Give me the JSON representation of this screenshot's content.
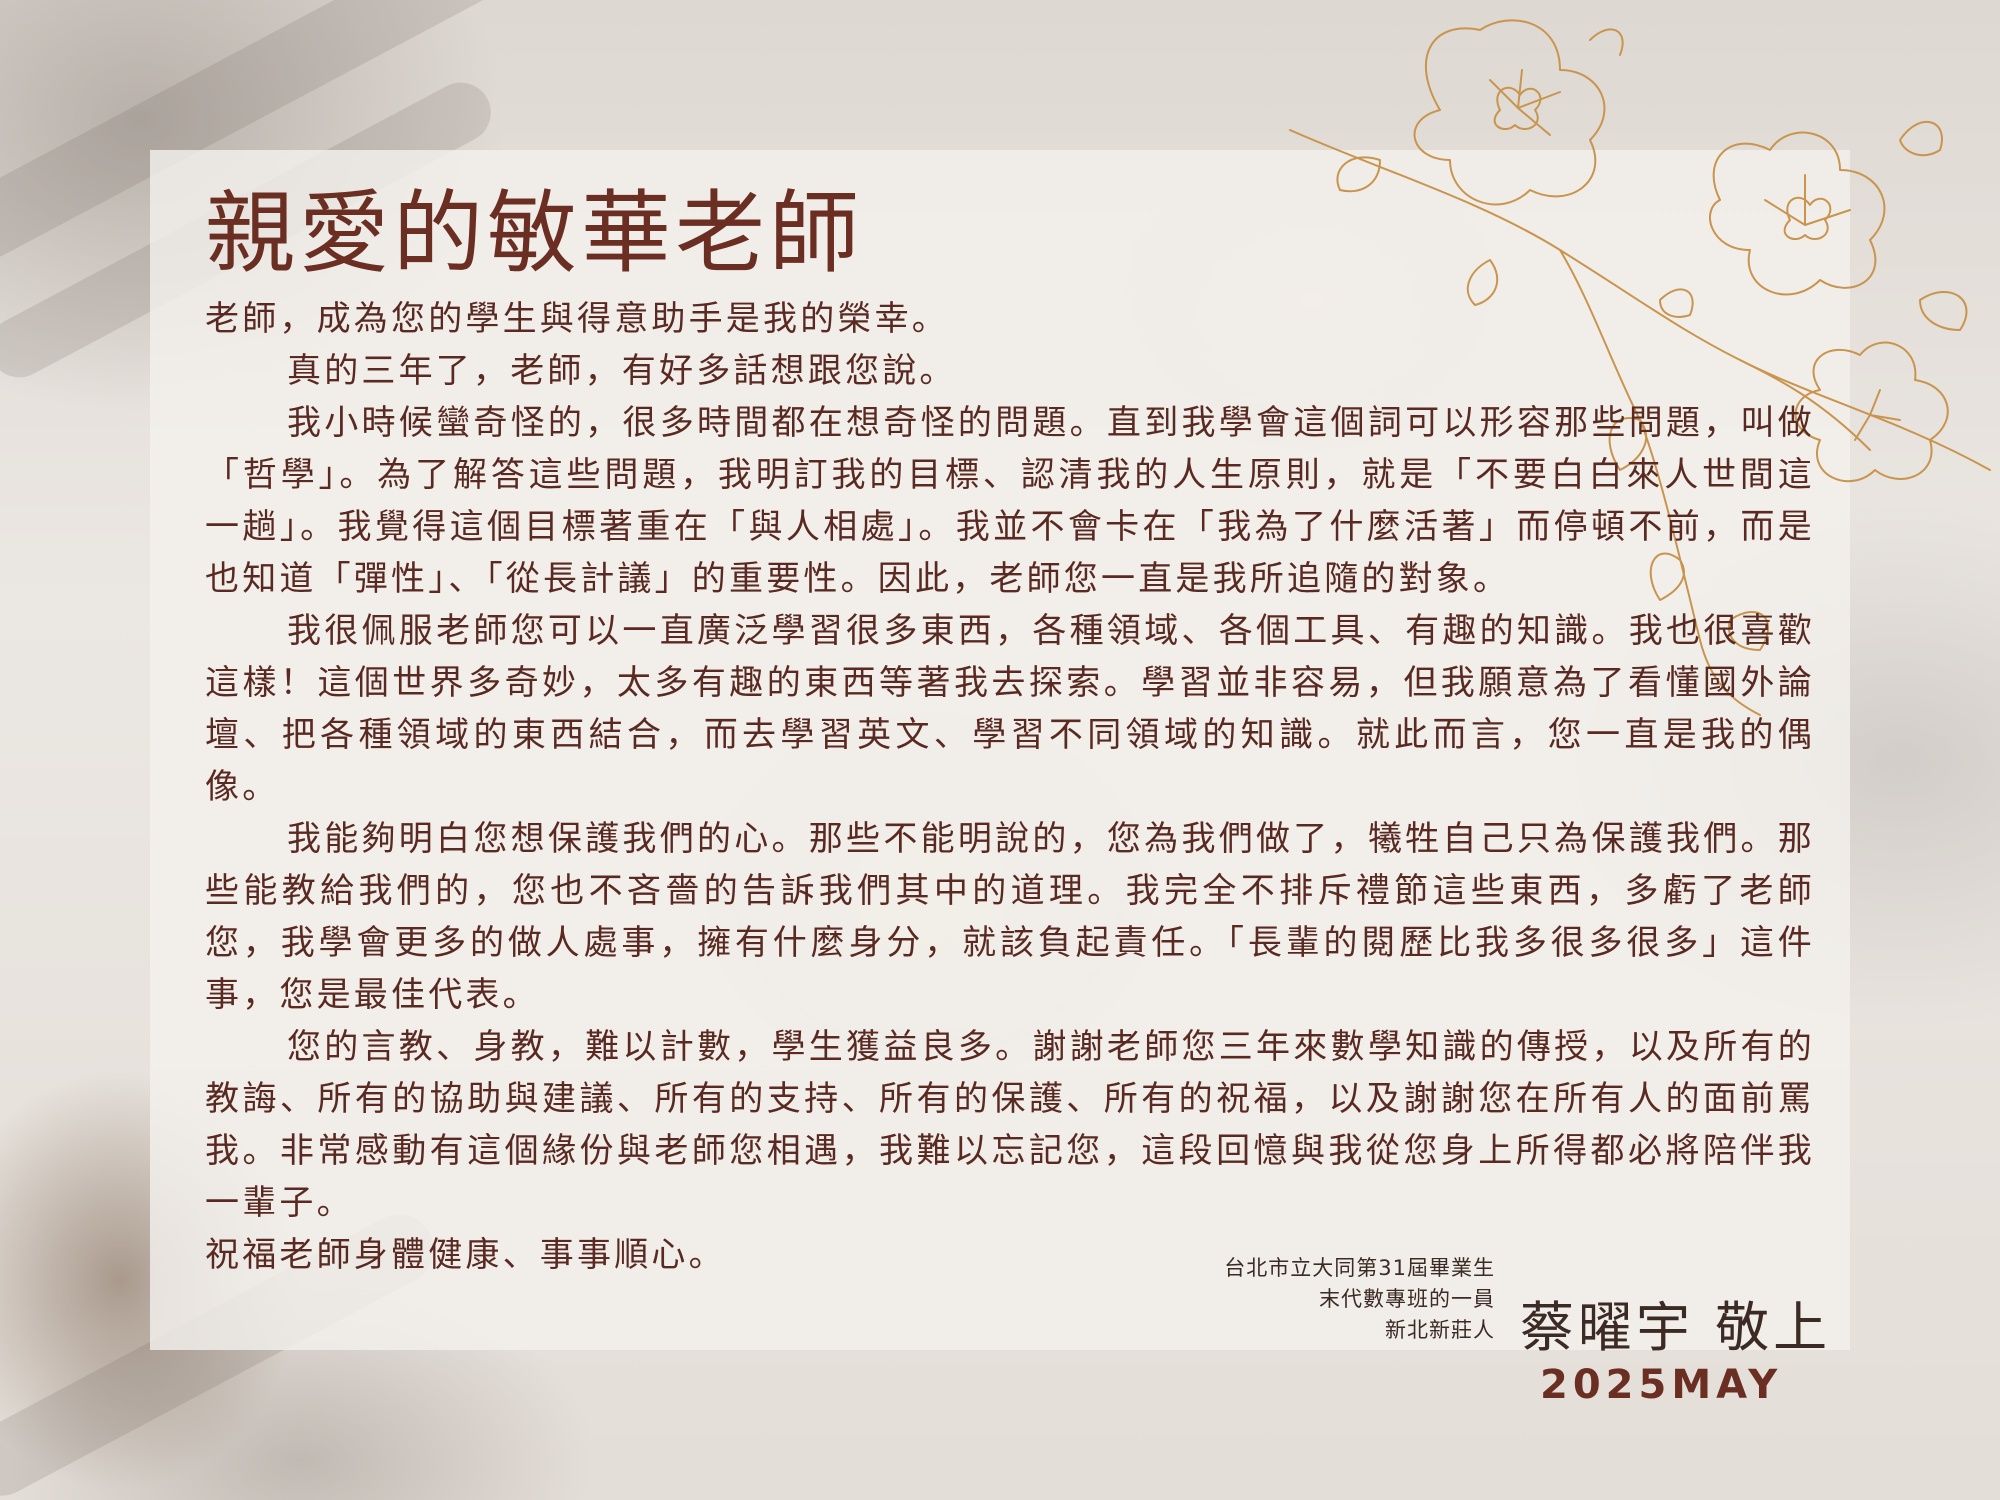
{
  "letter": {
    "title": "親愛的敏華老師",
    "paragraphs": [
      "老師，成為您的學生與得意助手是我的榮幸。",
      "真的三年了，老師，有好多話想跟您說。",
      "我小時候蠻奇怪的，很多時間都在想奇怪的問題。直到我學會這個詞可以形容那些問題，叫做「哲學」。為了解答這些問題，我明訂我的目標、認清我的人生原則，就是「不要白白來人世間這一趟」。我覺得這個目標著重在「與人相處」。我並不會卡在「我為了什麼活著」而停頓不前，而是也知道「彈性」、「從長計議」的重要性。因此，老師您一直是我所追隨的對象。",
      "我很佩服老師您可以一直廣泛學習很多東西，各種領域、各個工具、有趣的知識。我也很喜歡這樣！這個世界多奇妙，太多有趣的東西等著我去探索。學習並非容易，但我願意為了看懂國外論壇、把各種領域的東西結合，而去學習英文、學習不同領域的知識。就此而言，您一直是我的偶像。",
      "我能夠明白您想保護我們的心。那些不能明說的，您為我們做了，犧牲自己只為保護我們。那些能教給我們的，您也不吝嗇的告訴我們其中的道理。我完全不排斥禮節這些東西，多虧了老師您，我學會更多的做人處事，擁有什麼身分，就該負起責任。「長輩的閱歷比我多很多很多」這件事，您是最佳代表。",
      "您的言教、身教，難以計數，學生獲益良多。謝謝老師您三年來數學知識的傳授，以及所有的教誨、所有的協助與建議、所有的支持、所有的保護、所有的祝福，以及謝謝您在所有人的面前罵我。非常感動有這個緣份與老師您相遇，我難以忘記您，這段回憶與我從您身上所得都必將陪伴我一輩子。",
      "祝福老師身體健康、事事順心。"
    ]
  },
  "signature": {
    "line1": "台北市立大同第31屆畢業生",
    "line2": "末代數專班的一員",
    "line3": "新北新莊人",
    "name": "蔡曜宇 敬上",
    "date": "2025MAY"
  },
  "colors": {
    "title": "#6b2e22",
    "body_text": "#5a2a22",
    "floral_line": "#c9954e",
    "panel": "#f4f1ed"
  },
  "decoration": {
    "floral_icon": "magnolia-branch-line-art-icon"
  }
}
